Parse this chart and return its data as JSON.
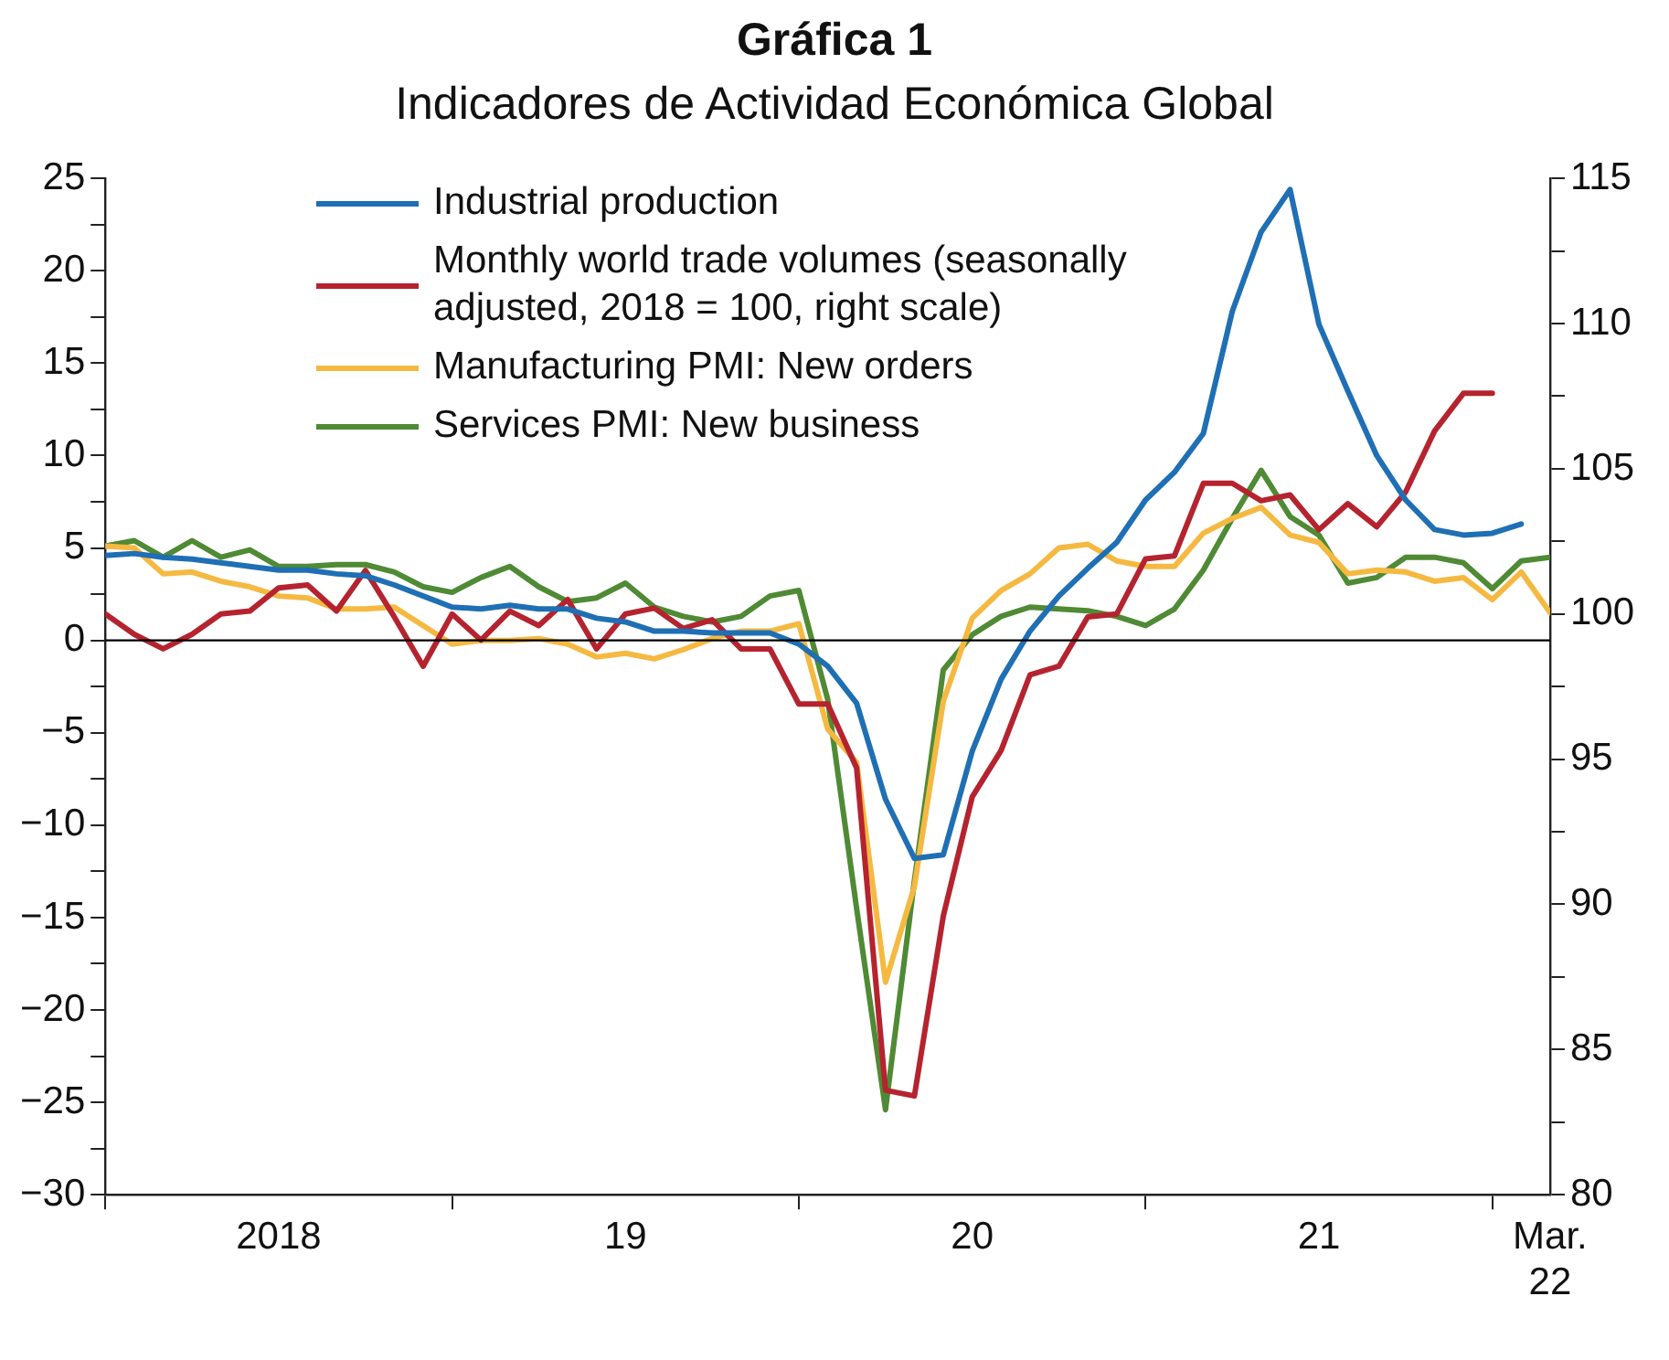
{
  "chart_data": {
    "type": "line",
    "title": "Gráfica 1",
    "subtitle": "Indicadores de Actividad Económica Global",
    "x": [
      "2018-01",
      "2018-02",
      "2018-03",
      "2018-04",
      "2018-05",
      "2018-06",
      "2018-07",
      "2018-08",
      "2018-09",
      "2018-10",
      "2018-11",
      "2018-12",
      "2019-01",
      "2019-02",
      "2019-03",
      "2019-04",
      "2019-05",
      "2019-06",
      "2019-07",
      "2019-08",
      "2019-09",
      "2019-10",
      "2019-11",
      "2019-12",
      "2020-01",
      "2020-02",
      "2020-03",
      "2020-04",
      "2020-05",
      "2020-06",
      "2020-07",
      "2020-08",
      "2020-09",
      "2020-10",
      "2020-11",
      "2020-12",
      "2021-01",
      "2021-02",
      "2021-03",
      "2021-04",
      "2021-05",
      "2021-06",
      "2021-07",
      "2021-08",
      "2021-09",
      "2021-10",
      "2021-11",
      "2021-12",
      "2022-01",
      "2022-02",
      "2022-03"
    ],
    "series": [
      {
        "name": "Industrial production",
        "color": "#1f6fb4",
        "values": [
          4.6,
          4.7,
          4.5,
          4.4,
          4.2,
          4.0,
          3.8,
          3.8,
          3.6,
          3.5,
          3.0,
          2.4,
          1.8,
          1.7,
          1.9,
          1.7,
          1.7,
          1.2,
          1.0,
          0.5,
          0.5,
          0.4,
          0.4,
          0.4,
          -0.2,
          -1.4,
          -3.4,
          -8.6,
          -11.8,
          -11.6,
          -6.0,
          -2.1,
          0.5,
          2.4,
          3.9,
          5.3,
          7.6,
          9.1,
          11.2,
          17.8,
          22.1,
          24.4,
          17.1,
          13.5,
          10.0,
          7.6,
          6.0,
          5.7,
          5.8,
          6.3,
          null
        ]
      },
      {
        "name": "Monthly world trade volumes (seasonally adjusted, 2018 = 100, right scale)",
        "color": "#b5232f",
        "axis": "y2",
        "values": [
          100.0,
          99.3,
          98.8,
          99.3,
          100.0,
          100.1,
          100.9,
          101.0,
          100.1,
          101.5,
          99.9,
          98.2,
          100.0,
          99.1,
          100.1,
          99.6,
          100.5,
          98.8,
          100.0,
          100.2,
          99.5,
          99.8,
          98.8,
          98.8,
          96.9,
          96.9,
          94.7,
          83.6,
          83.4,
          89.6,
          93.7,
          95.3,
          97.9,
          98.2,
          99.9,
          100.0,
          101.9,
          102.0,
          104.5,
          104.5,
          103.9,
          104.1,
          102.9,
          103.8,
          103.0,
          104.2,
          106.3,
          107.6,
          107.6,
          null,
          null
        ]
      },
      {
        "name": "Manufacturing PMI: New orders",
        "color": "#f5b942",
        "values": [
          5.1,
          5.0,
          3.6,
          3.7,
          3.2,
          2.9,
          2.4,
          2.3,
          1.7,
          1.7,
          1.8,
          0.8,
          -0.2,
          0.0,
          0.0,
          0.1,
          -0.2,
          -0.9,
          -0.7,
          -1.0,
          -0.5,
          0.1,
          0.5,
          0.5,
          0.9,
          -4.8,
          -6.6,
          -18.5,
          -13.3,
          -3.3,
          1.2,
          2.7,
          3.6,
          5.0,
          5.2,
          4.3,
          4.0,
          4.0,
          5.8,
          6.6,
          7.2,
          5.7,
          5.3,
          3.6,
          3.8,
          3.7,
          3.2,
          3.4,
          2.2,
          3.7,
          1.5
        ]
      },
      {
        "name": "Services PMI: New business",
        "color": "#4f8a34",
        "values": [
          5.1,
          5.4,
          4.5,
          5.4,
          4.5,
          4.9,
          4.0,
          4.0,
          4.1,
          4.1,
          3.7,
          2.9,
          2.6,
          3.4,
          4.0,
          2.9,
          2.1,
          2.3,
          3.1,
          1.8,
          1.3,
          1.0,
          1.3,
          2.4,
          2.7,
          -3.2,
          -14.5,
          -25.4,
          -13.0,
          -1.6,
          0.3,
          1.3,
          1.8,
          1.7,
          1.6,
          1.3,
          0.8,
          1.7,
          3.8,
          6.6,
          9.2,
          6.7,
          5.7,
          3.1,
          3.4,
          4.5,
          4.5,
          4.2,
          2.8,
          4.3,
          4.5
        ]
      }
    ],
    "xlim": [
      "2018-01",
      "2022-03"
    ],
    "xticks": [
      {
        "value": "2018-01",
        "label": null
      },
      {
        "value": "2018-07",
        "label": "2018"
      },
      {
        "value": "2019-01",
        "label": null
      },
      {
        "value": "2019-07",
        "label": "19"
      },
      {
        "value": "2020-01",
        "label": null
      },
      {
        "value": "2020-07",
        "label": "20"
      },
      {
        "value": "2021-01",
        "label": null
      },
      {
        "value": "2021-07",
        "label": "21"
      },
      {
        "value": "2022-01",
        "label": null
      },
      {
        "value": "2022-03",
        "label": "Mar. 22"
      }
    ],
    "ylim": [
      -30,
      25
    ],
    "yticks": [
      -30,
      {
        "value": -27.5,
        "label": null
      },
      -25,
      {
        "value": -22.5,
        "label": null
      },
      -20,
      {
        "value": -17.5,
        "label": null
      },
      -15,
      {
        "value": -12.5,
        "label": null
      },
      -10,
      {
        "value": -7.5,
        "label": null
      },
      -5,
      {
        "value": -2.5,
        "label": null
      },
      0,
      {
        "value": 2.5,
        "label": null
      },
      5,
      {
        "value": 7.5,
        "label": null
      },
      10,
      {
        "value": 12.5,
        "label": null
      },
      15,
      {
        "value": 17.5,
        "label": null
      },
      20,
      {
        "value": 22.5,
        "label": null
      },
      25
    ],
    "y2lim": [
      80,
      115
    ],
    "y2ticks": [
      80,
      {
        "value": 82.5,
        "label": null
      },
      85,
      {
        "value": 87.5,
        "label": null
      },
      90,
      {
        "value": 92.5,
        "label": null
      },
      95,
      {
        "value": 97.5,
        "label": null
      },
      100,
      {
        "value": 102.5,
        "label": null
      },
      105,
      {
        "value": 107.5,
        "label": null
      },
      110,
      {
        "value": 112.5,
        "label": null
      },
      115
    ],
    "ref_lines": [
      {
        "axis": "y",
        "value": 0,
        "color": "#000000"
      }
    ],
    "grid": false,
    "legend": "top",
    "marker": "none",
    "line_style": "solid"
  }
}
